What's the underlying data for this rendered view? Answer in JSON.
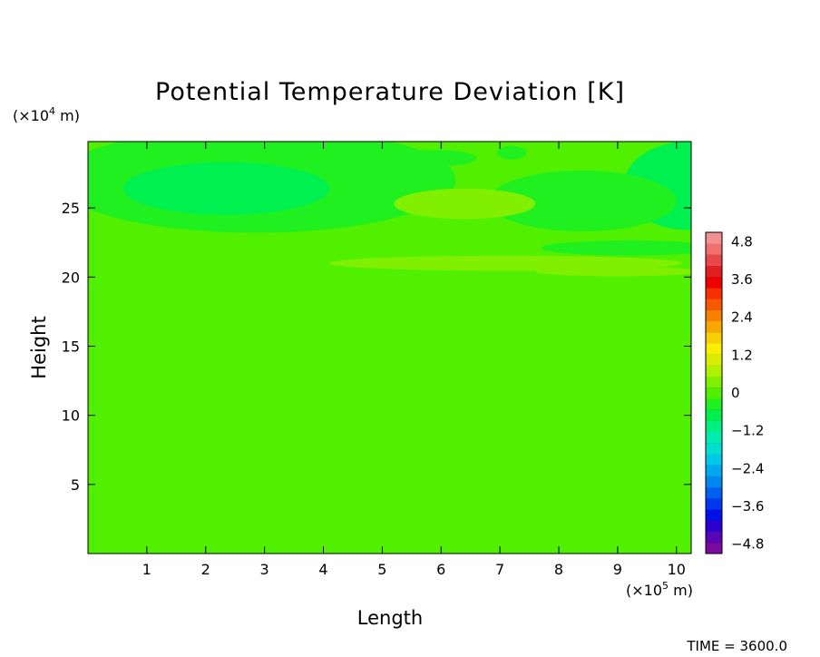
{
  "chart_data": {
    "type": "heatmap",
    "title": "Potential Temperature Deviation [K]",
    "xlabel": "Length",
    "ylabel": "Height",
    "x_unit_prefix": "(×10",
    "x_unit_exp": "5",
    "x_unit_suffix": " m)",
    "y_unit_prefix": "(×10",
    "y_unit_exp": "4",
    "y_unit_suffix": " m)",
    "xlim": [
      0,
      10.25
    ],
    "ylim": [
      0,
      29.8
    ],
    "x_ticks": [
      1,
      2,
      3,
      4,
      5,
      6,
      7,
      8,
      9,
      10
    ],
    "y_ticks": [
      5,
      10,
      15,
      20,
      25
    ],
    "colorbar": {
      "range": [
        -5.1,
        5.1
      ],
      "tick_values": [
        4.8,
        3.6,
        2.4,
        1.2,
        0,
        -1.2,
        -2.4,
        -3.6,
        -4.8
      ],
      "tick_labels": [
        "4.8",
        "3.6",
        "2.4",
        "1.2",
        "0",
        "−1.2",
        "−2.4",
        "−3.6",
        "−4.8"
      ],
      "colors": [
        "#7a0aa0",
        "#5a05b8",
        "#2a00d0",
        "#0010e8",
        "#0038f0",
        "#0060f0",
        "#0088f0",
        "#00a8f0",
        "#00c8e8",
        "#00e0d0",
        "#00ecb0",
        "#00f080",
        "#00f050",
        "#20f020",
        "#50f000",
        "#80f000",
        "#b0f000",
        "#d8f000",
        "#f8f000",
        "#f8d000",
        "#f8a800",
        "#f88000",
        "#f85800",
        "#f83000",
        "#f00000",
        "#e02020",
        "#e84848",
        "#f07070",
        "#f09090"
      ]
    },
    "background_value": -0.05,
    "features": [
      {
        "kind": "anomaly",
        "x_center": 2.85,
        "y_center": 27.0,
        "x_halfwidth": 3.4,
        "y_halfwidth": 3.8,
        "value": -0.35
      },
      {
        "kind": "anomaly",
        "x_center": 2.35,
        "y_center": 26.4,
        "x_halfwidth": 1.75,
        "y_halfwidth": 1.9,
        "value": -0.75
      },
      {
        "kind": "anomaly",
        "x_center": 10.2,
        "y_center": 26.6,
        "x_halfwidth": 1.1,
        "y_halfwidth": 3.2,
        "value": -0.7
      },
      {
        "kind": "anomaly",
        "x_center": 8.4,
        "y_center": 25.5,
        "x_halfwidth": 1.6,
        "y_halfwidth": 2.2,
        "value": -0.3
      },
      {
        "kind": "anomaly",
        "x_center": 5.9,
        "y_center": 28.6,
        "x_halfwidth": 0.7,
        "y_halfwidth": 0.6,
        "value": -0.3
      },
      {
        "kind": "anomaly",
        "x_center": 7.2,
        "y_center": 29.0,
        "x_halfwidth": 0.25,
        "y_halfwidth": 0.5,
        "value": -0.3
      },
      {
        "kind": "anomaly",
        "x_center": 9.2,
        "y_center": 22.1,
        "x_halfwidth": 1.5,
        "y_halfwidth": 0.55,
        "value": -0.4
      },
      {
        "kind": "anomaly",
        "x_center": 6.4,
        "y_center": 25.3,
        "x_halfwidth": 1.2,
        "y_halfwidth": 1.1,
        "value": 0.3
      },
      {
        "kind": "anomaly",
        "x_center": 7.1,
        "y_center": 21.0,
        "x_halfwidth": 3.0,
        "y_halfwidth": 0.55,
        "value": 0.3
      },
      {
        "kind": "anomaly",
        "x_center": 9.0,
        "y_center": 20.4,
        "x_halfwidth": 1.4,
        "y_halfwidth": 0.35,
        "value": 0.35
      }
    ]
  },
  "time_label": "TIME =",
  "time_value": "3600.0"
}
